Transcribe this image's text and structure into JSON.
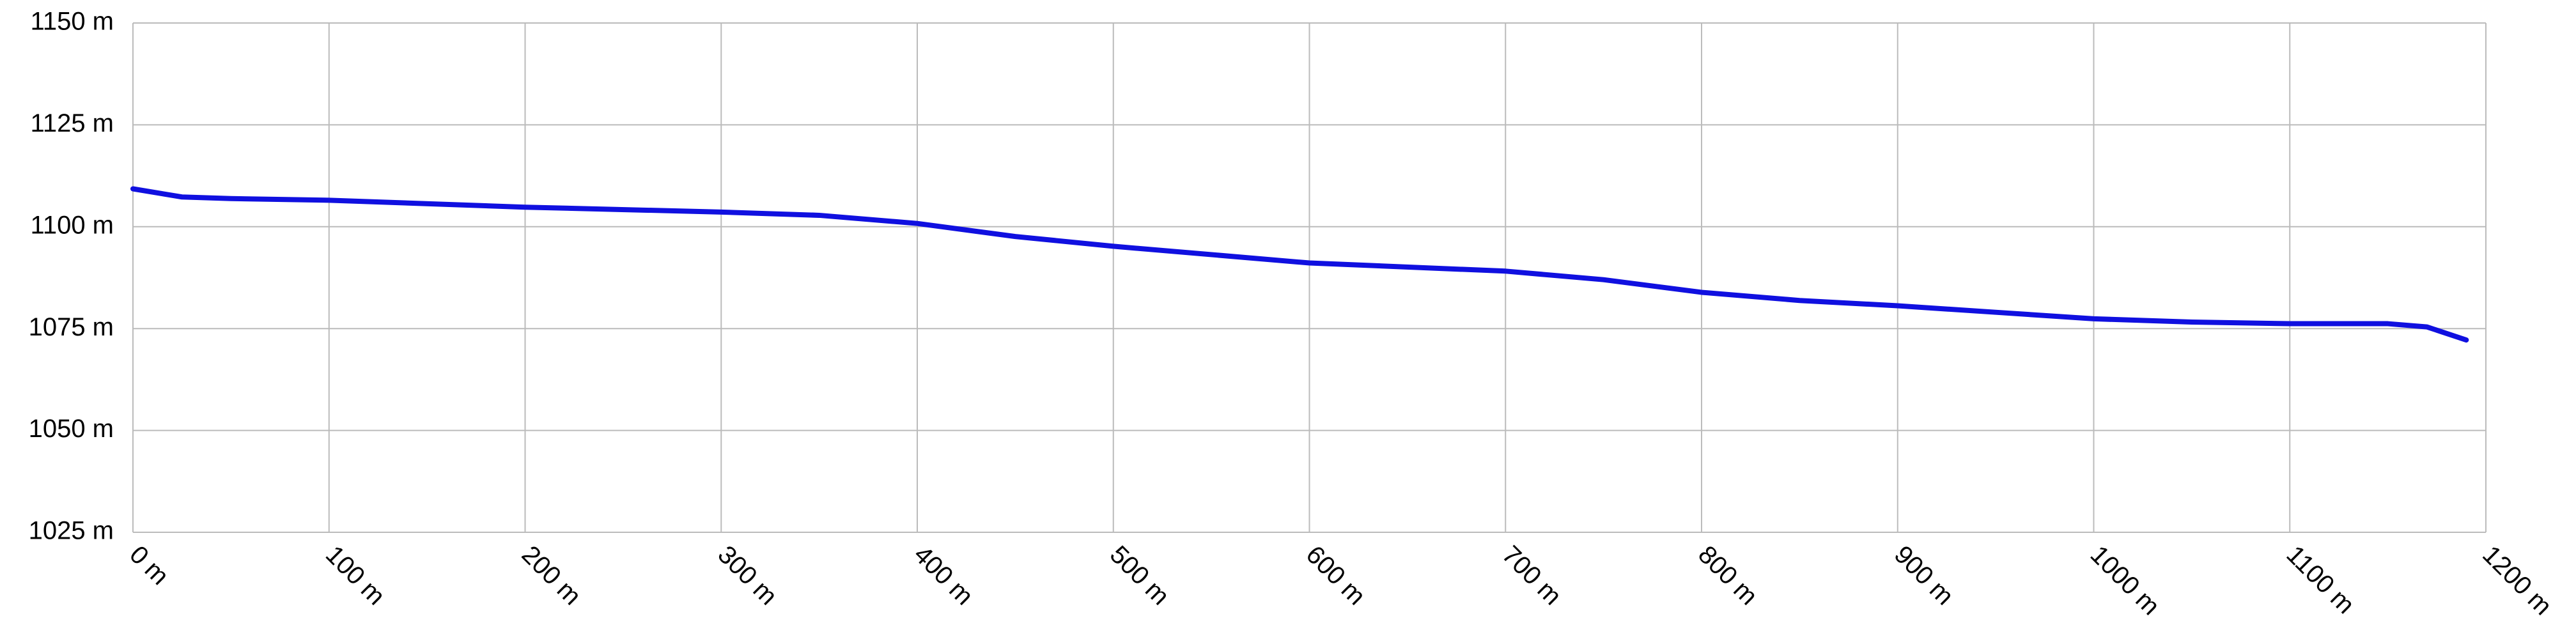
{
  "chart_data": {
    "type": "line",
    "x": [
      0,
      25,
      50,
      100,
      200,
      300,
      350,
      400,
      450,
      500,
      600,
      700,
      750,
      800,
      850,
      900,
      950,
      1000,
      1050,
      1100,
      1150,
      1170,
      1190
    ],
    "series": [
      {
        "color": "#1010e0",
        "values": [
          1109.3,
          1107.3,
          1106.9,
          1106.5,
          1104.8,
          1103.6,
          1102.8,
          1100.8,
          1097.6,
          1095.2,
          1091.1,
          1089.1,
          1087,
          1083.9,
          1081.9,
          1080.6,
          1079,
          1077.4,
          1076.6,
          1076.2,
          1076.2,
          1075.4,
          1072.2
        ]
      }
    ],
    "xlim": [
      0,
      1200
    ],
    "xticks": [
      {
        "value": 0,
        "label": "0 m"
      },
      {
        "value": 100,
        "label": "100 m"
      },
      {
        "value": 200,
        "label": "200 m"
      },
      {
        "value": 300,
        "label": "300 m"
      },
      {
        "value": 400,
        "label": "400 m"
      },
      {
        "value": 500,
        "label": "500 m"
      },
      {
        "value": 600,
        "label": "600 m"
      },
      {
        "value": 700,
        "label": "700 m"
      },
      {
        "value": 800,
        "label": "800 m"
      },
      {
        "value": 900,
        "label": "900 m"
      },
      {
        "value": 1000,
        "label": "1000 m"
      },
      {
        "value": 1100,
        "label": "1100 m"
      },
      {
        "value": 1200,
        "label": "1200 m"
      }
    ],
    "ylim": [
      1025,
      1150
    ],
    "yticks": [
      {
        "value": 1025,
        "label": "1025 m"
      },
      {
        "value": 1050,
        "label": "1050 m"
      },
      {
        "value": 1075,
        "label": "1075 m"
      },
      {
        "value": 1100,
        "label": "1100 m"
      },
      {
        "value": 1125,
        "label": "1125 m"
      },
      {
        "value": 1150,
        "label": "1150 m"
      }
    ],
    "grid": true
  }
}
